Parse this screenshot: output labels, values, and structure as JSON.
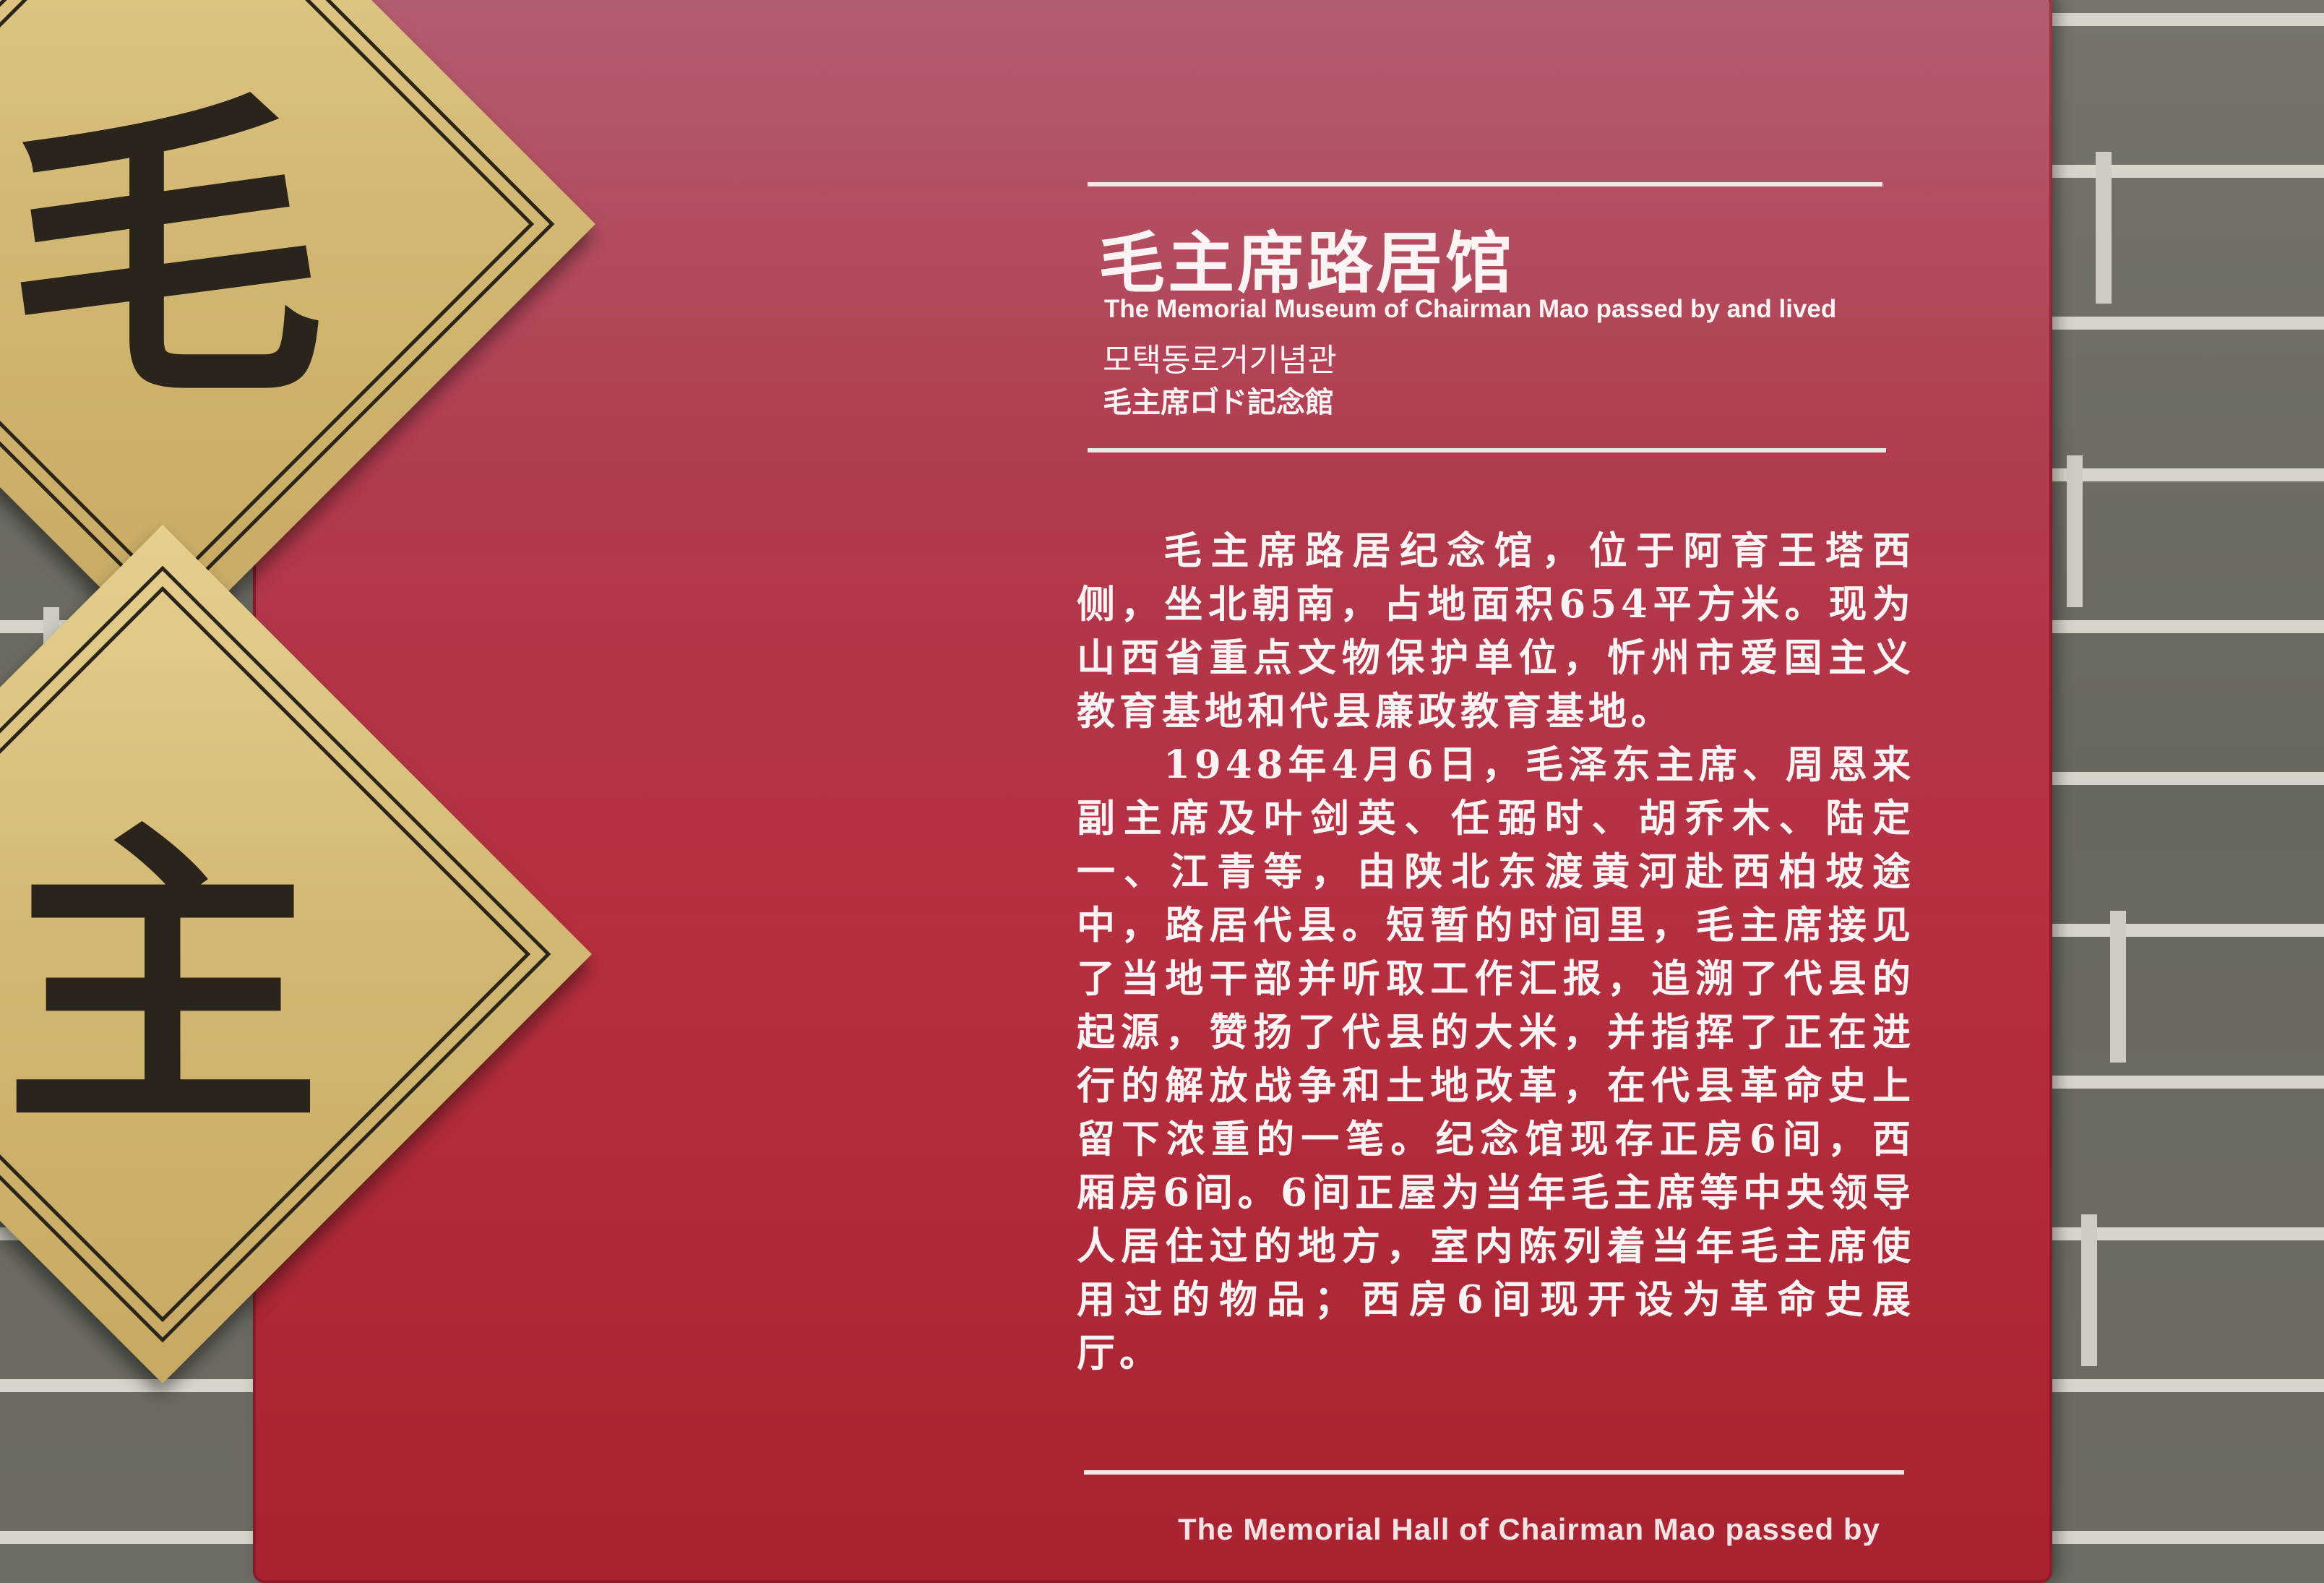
{
  "sign": {
    "title_zh": "毛主席路居馆",
    "title_en": "The Memorial  Museum of Chairman Mao passed by and lived",
    "title_ko": "모택동로거기념관",
    "title_ja": "毛主席ロ゙ド記念館",
    "body_paragraphs": [
      "毛主席路居纪念馆，位于阿育王塔西侧，坐北朝南，占地面积654平方米。现为山西省重点文物保护单位，忻州市爱国主义教育基地和代县廉政教育基地。",
      "1948年4月6日，毛泽东主席、周恩来副主席及叶剑英、任弼时、胡乔木、陆定一、江青等，由陕北东渡黄河赴西柏坡途中，路居代县。短暂的时间里，毛主席接见了当地干部并听取工作汇报，追溯了代县的起源，赞扬了代县的大米，并指挥了正在进行的解放战争和土地改革，在代县革命史上留下浓重的一笔。纪念馆现存正房6间，西厢房6间。6间正屋为当年毛主席等中央领导人居住过的地方，室内陈列着当年毛主席使用过的物品；西房6间现开设为革命史展厅。"
    ],
    "bottom_en": "The Memorial Hall of Chairman Mao passed by"
  },
  "plaques": {
    "upper_char": "毛",
    "lower_char": "主"
  },
  "colors": {
    "sign_red": "#b03c50",
    "gold": "#d3b974",
    "wall_gray": "#6f6c66"
  }
}
